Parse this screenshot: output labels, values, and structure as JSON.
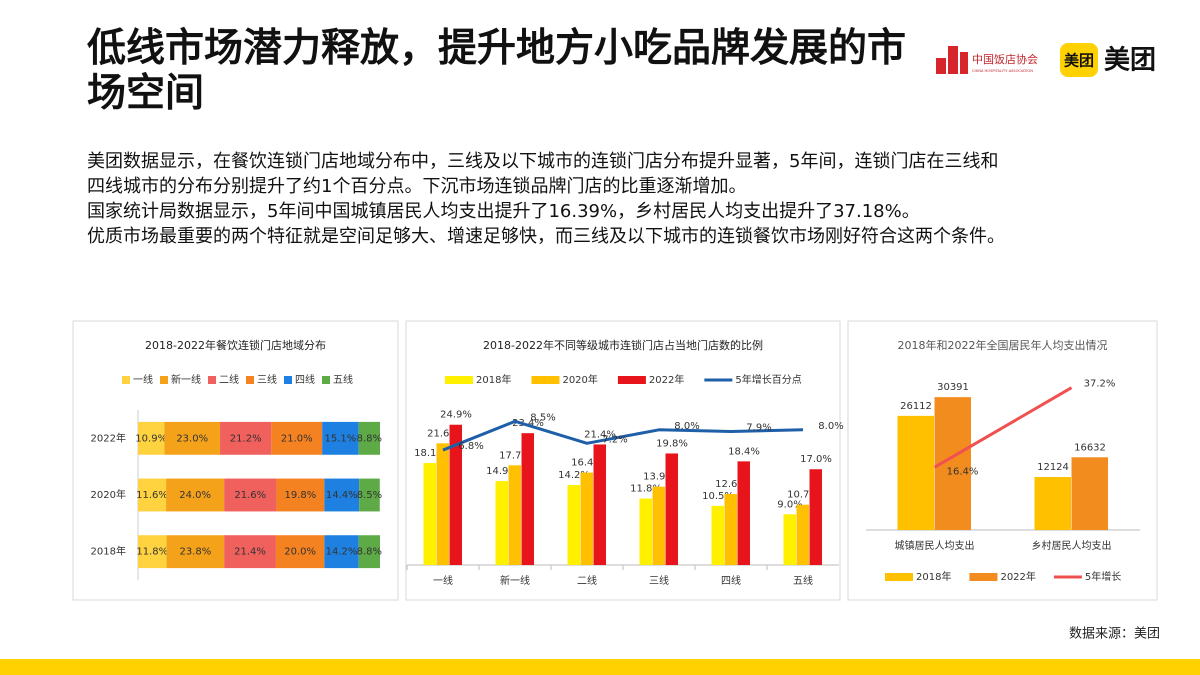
{
  "header": {
    "title": "低线市场潜力释放，提升地方小吃品牌发展的市场空间",
    "logos": {
      "association_cn": "中国饭店协会",
      "association_en": "CHINA HOSPITALITY ASSOCIATION",
      "meituan_icon": "美团",
      "meituan_text": "美团"
    }
  },
  "body": {
    "lines": [
      "美团数据显示，在餐饮连锁门店地域分布中，三线及以下城市的连锁门店分布提升显著，5年间，连锁门店在三线和",
      "四线城市的分布分别提升了约1个百分点。下沉市场连锁品牌门店的比重逐渐增加。",
      "国家统计局数据显示，5年间中国城镇居民人均支出提升了16.39%，乡村居民人均支出提升了37.18%。",
      "优质市场最重要的两个特征就是空间足够大、增速足够快，而三线及以下城市的连锁餐饮市场刚好符合这两个条件。"
    ]
  },
  "source": "数据来源：美团",
  "chart_data": [
    {
      "type": "bar",
      "orientation": "horizontal",
      "stacked": true,
      "title": "2018-2022年餐饮连锁门店地域分布",
      "categories": [
        "2022年",
        "2020年",
        "2018年"
      ],
      "xlim": [
        0,
        100
      ],
      "series": [
        {
          "name": "一线",
          "color": "#FFD23F",
          "values": [
            10.9,
            11.6,
            11.8
          ],
          "value_labels": [
            "10.9%",
            "11.6%",
            "11.8%"
          ]
        },
        {
          "name": "新一线",
          "color": "#F5A21B",
          "values": [
            23.0,
            24.0,
            23.8
          ],
          "value_labels": [
            "23.0%",
            "24.0%",
            "23.8%"
          ]
        },
        {
          "name": "二线",
          "color": "#F0605D",
          "values": [
            21.2,
            21.6,
            21.4
          ],
          "value_labels": [
            "21.2%",
            "21.6%",
            "21.4%"
          ]
        },
        {
          "name": "三线",
          "color": "#F58220",
          "values": [
            21.0,
            19.8,
            20.0
          ],
          "value_labels": [
            "21.0%",
            "19.8%",
            "20.0%"
          ]
        },
        {
          "name": "四线",
          "color": "#1E80E0",
          "values": [
            15.1,
            14.4,
            14.2
          ],
          "value_labels": [
            "15.1%",
            "14.4%",
            "14.2%"
          ]
        },
        {
          "name": "五线",
          "color": "#5DAA46",
          "values": [
            8.8,
            8.5,
            8.8
          ],
          "value_labels": [
            "8.8%",
            "8.5%",
            "8.8%"
          ]
        }
      ]
    },
    {
      "type": "bar",
      "title": "2018-2022年不同等级城市连锁门店占当地门店数的比例",
      "categories": [
        "一线",
        "新一线",
        "二线",
        "三线",
        "四线",
        "五线"
      ],
      "ylim": [
        0,
        30
      ],
      "y2lim": [
        0,
        10
      ],
      "series": [
        {
          "name": "2018年",
          "color": "#FFF000",
          "values": [
            18.1,
            14.9,
            14.2,
            11.8,
            10.5,
            9.0
          ],
          "value_labels": [
            "18.1%",
            "14.9%",
            "14.2%",
            "11.8%",
            "10.5%",
            "9.0%"
          ]
        },
        {
          "name": "2020年",
          "color": "#FFC000",
          "values": [
            21.6,
            17.7,
            16.4,
            13.9,
            12.6,
            10.7
          ],
          "value_labels": [
            "21.6%",
            "17.7%",
            "16.4%",
            "13.9%",
            "12.6%",
            "10.7%"
          ]
        },
        {
          "name": "2022年",
          "color": "#E8141B",
          "values": [
            24.9,
            23.4,
            21.4,
            19.8,
            18.4,
            17.0
          ],
          "value_labels": [
            "24.9%",
            "23.4%",
            "21.4%",
            "19.8%",
            "18.4%",
            "17.0%"
          ]
        },
        {
          "name": "5年增长百分点",
          "color": "#1F5FA8",
          "type": "line",
          "axis": "y2",
          "values": [
            6.8,
            8.5,
            7.2,
            8.0,
            7.9,
            8.0
          ],
          "value_labels": [
            "6.8%",
            "8.5%",
            "7.2%",
            "8.0%",
            "7.9%",
            "8.0%"
          ]
        }
      ]
    },
    {
      "type": "bar",
      "title": "2018年和2022年全国居民年人均支出情况",
      "categories": [
        "城镇居民人均支出",
        "乡村居民人均支出"
      ],
      "ylim": [
        0,
        35000
      ],
      "y2lim": [
        0,
        40
      ],
      "series": [
        {
          "name": "2018年",
          "color": "#FFC000",
          "values": [
            26112,
            12124
          ]
        },
        {
          "name": "2022年",
          "color": "#F28C1E",
          "values": [
            30391,
            16632
          ]
        },
        {
          "name": "5年增长",
          "color": "#F0504F",
          "type": "line",
          "axis": "y2",
          "values": [
            16.4,
            37.2
          ],
          "value_labels": [
            "16.4%",
            "37.2%"
          ]
        }
      ]
    }
  ]
}
